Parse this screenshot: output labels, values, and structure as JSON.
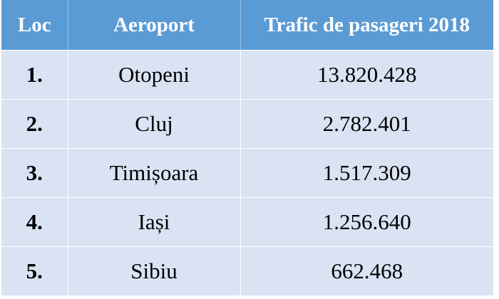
{
  "table": {
    "header": [
      "Loc",
      "Aeroport",
      "Trafic de pasageri 2018"
    ],
    "rows": [
      [
        "1.",
        "Otopeni",
        "13.820.428"
      ],
      [
        "2.",
        "Cluj",
        "2.782.401"
      ],
      [
        "3.",
        "Timișoara",
        "1.517.309"
      ],
      [
        "4.",
        "Iași",
        "1.256.640"
      ],
      [
        "5.",
        "Sibiu",
        "662.468"
      ]
    ]
  }
}
